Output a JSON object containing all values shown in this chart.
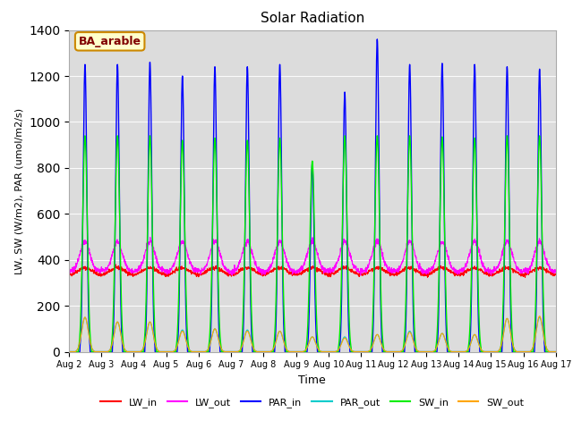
{
  "title": "Solar Radiation",
  "xlabel": "Time",
  "ylabel": "LW, SW (W/m2), PAR (umol/m2/s)",
  "annotation": "BA_arable",
  "ylim": [
    0,
    1400
  ],
  "bg_color": "#dcdcdc",
  "colors": {
    "LW_in": "#ff0000",
    "LW_out": "#ff00ff",
    "PAR_in": "#0000ff",
    "PAR_out": "#00cccc",
    "SW_in": "#00ee00",
    "SW_out": "#ffa500"
  },
  "start_day": 2,
  "end_day": 17,
  "n_days": 15,
  "n_points_per_day": 144
}
